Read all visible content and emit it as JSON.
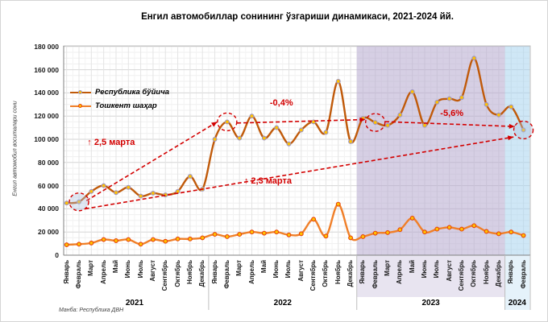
{
  "title": "Енгил автомобиллар сонининг ўзгариши динамикаси, 2021-2024 йй.",
  "y_axis_title": "Енгил автомобил воситалари сони",
  "source_note": "Манба: Республика ДВН",
  "chart_data": {
    "type": "line",
    "title": "Енгил автомобиллар сонининг ўзгариши динамикаси, 2021-2024 йй.",
    "ylabel": "Енгил автомобил воситалари сони",
    "ylim": [
      0,
      180000
    ],
    "y_tick_step": 20000,
    "y_minor_step": 5000,
    "y_tick_labels": [
      "0",
      "20 000",
      "40 000",
      "60 000",
      "80 000",
      "100 000",
      "120 000",
      "140 000",
      "160 000",
      "180 000"
    ],
    "grid": true,
    "legend_position": "top-left",
    "accent_color": "#d30000",
    "categories": [
      "Январь",
      "Февраль",
      "Март",
      "Апрель",
      "Май",
      "Июнь",
      "Июль",
      "Август",
      "Сентябрь",
      "Октябрь",
      "Ноябрь",
      "Декабрь",
      "Январь",
      "Февраль",
      "Март",
      "Апрель",
      "Май",
      "Июнь",
      "Июль",
      "Август",
      "Сентябрь",
      "Октябрь",
      "Ноябрь",
      "Декабрь",
      "Январь",
      "Февраль",
      "Март",
      "Апрель",
      "Май",
      "Июнь",
      "Июль",
      "Август",
      "Сентябрь",
      "Октябрь",
      "Ноябрь",
      "Декабрь",
      "Январь",
      "Февраль"
    ],
    "year_groups": [
      {
        "label": "2021",
        "from": 0,
        "to": 11
      },
      {
        "label": "2022",
        "from": 12,
        "to": 23
      },
      {
        "label": "2023",
        "from": 24,
        "to": 35
      },
      {
        "label": "2024",
        "from": 36,
        "to": 37
      }
    ],
    "series": [
      {
        "name": "Республика бўйича",
        "color": "#c05a0a",
        "marker_fill": "#ffc000",
        "marker_stroke": "#9c94c2",
        "values": [
          45000,
          46000,
          55000,
          60000,
          54000,
          58500,
          51000,
          53500,
          52000,
          55000,
          68000,
          57000,
          100000,
          115000,
          101000,
          120000,
          101000,
          110000,
          96000,
          108000,
          115000,
          106000,
          150000,
          98000,
          118000,
          114500,
          112000,
          121000,
          141000,
          112000,
          132000,
          135000,
          136000,
          170000,
          130000,
          121000,
          128000,
          108000
        ]
      },
      {
        "name": "Тошкент шаҳар",
        "color": "#f07f29",
        "marker_fill": "#ffc000",
        "marker_stroke": "#e8420b",
        "values": [
          9000,
          9500,
          10500,
          13500,
          12500,
          13500,
          9500,
          13500,
          12000,
          14000,
          14000,
          15000,
          18000,
          16000,
          18000,
          20000,
          19000,
          20000,
          17500,
          18500,
          31000,
          16500,
          44000,
          15000,
          16000,
          19000,
          19500,
          22000,
          32000,
          20000,
          22500,
          24000,
          22500,
          25500,
          20500,
          18500,
          20000,
          17000
        ]
      }
    ],
    "highlight_bands": [
      {
        "year": "2023",
        "from": 24,
        "to": 35,
        "color": "#b4a7cd"
      },
      {
        "year": "2024",
        "from": 36,
        "to": 37,
        "color": "#a8d4ee"
      }
    ],
    "highlight_circles": [
      {
        "series": 0,
        "index": 1,
        "filled": true
      },
      {
        "series": 0,
        "index": 13,
        "filled": false
      },
      {
        "series": 0,
        "index": 25,
        "filled": false
      },
      {
        "series": 0,
        "index": 37,
        "filled": true
      }
    ],
    "trend_lines": [
      {
        "from_index": 1.6,
        "from_value": 47000,
        "to_index": 12.2,
        "to_value": 115000,
        "arrow": true
      },
      {
        "from_index": 1.5,
        "from_value": 40000,
        "to_index": 36.2,
        "to_value": 102000,
        "arrow": true
      },
      {
        "from_index": 13.8,
        "from_value": 114000,
        "to_index": 24.2,
        "to_value": 117000,
        "arrow": true
      },
      {
        "from_index": 25.8,
        "from_value": 115200,
        "to_index": 36.3,
        "to_value": 111000,
        "arrow": true
      }
    ],
    "annotations": [
      {
        "text": "↑ 2,5 марта",
        "index": 3.6,
        "value": 97000
      },
      {
        "text": "-0,4%",
        "index": 17.4,
        "value": 131000
      },
      {
        "text": "↑ 2,3 марта",
        "index": 16.3,
        "value": 64000
      },
      {
        "text": "-5,6%",
        "index": 31.2,
        "value": 122000
      }
    ]
  }
}
